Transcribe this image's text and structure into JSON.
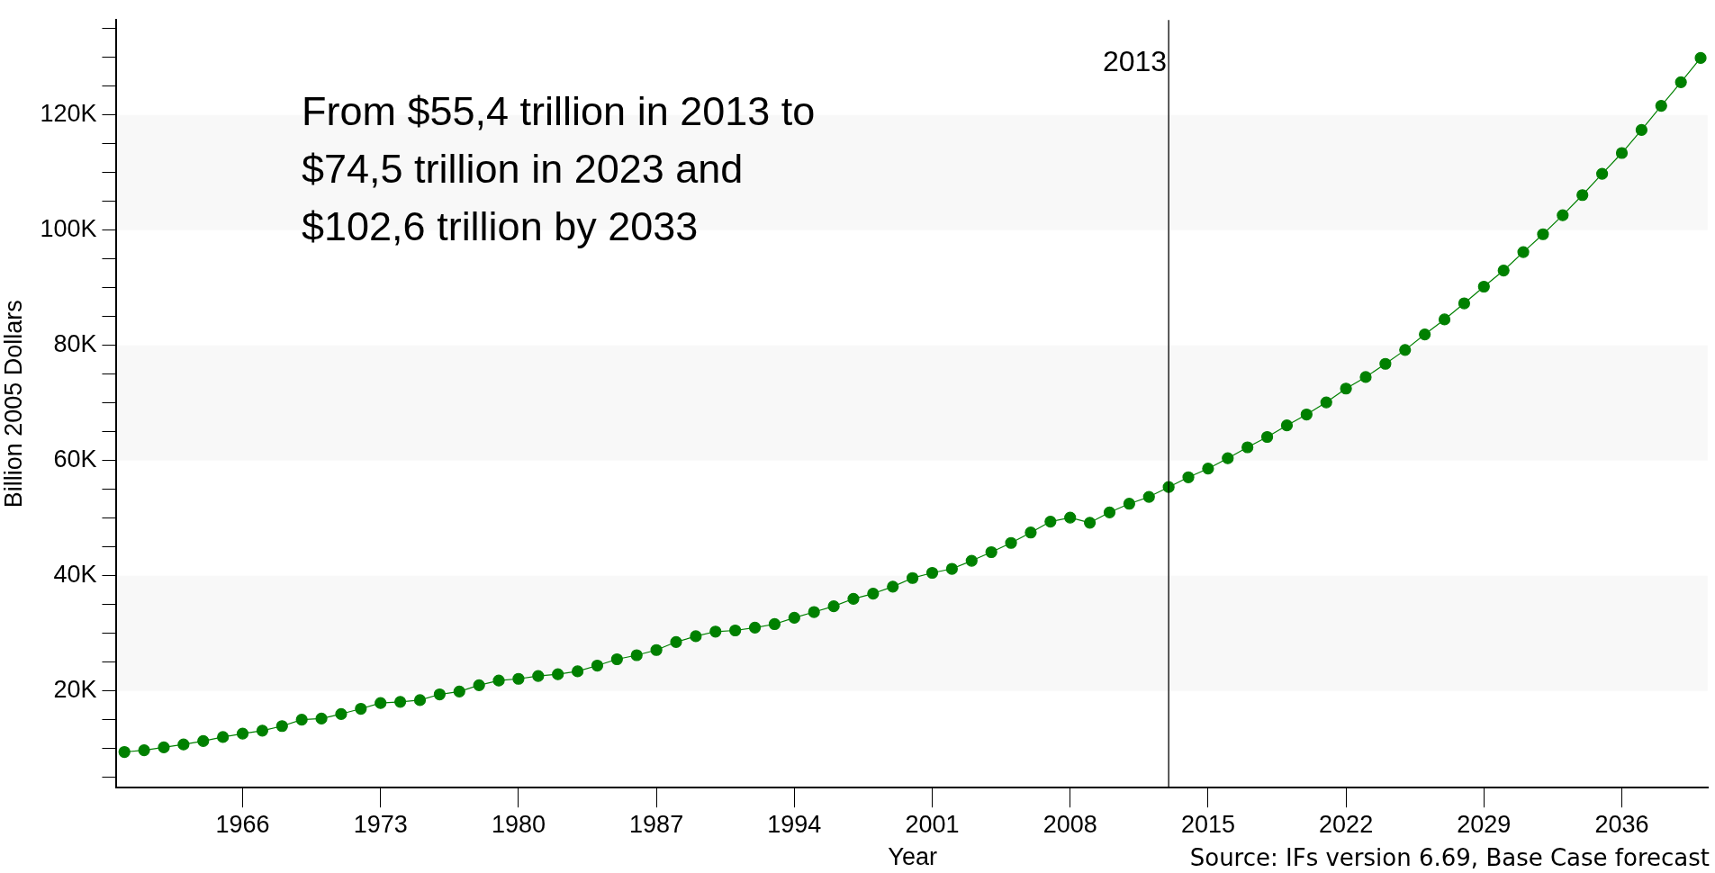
{
  "chart_data": {
    "type": "line",
    "xlabel": "Year",
    "ylabel": "Billion 2005 Dollars",
    "x": [
      1960,
      1961,
      1962,
      1963,
      1964,
      1965,
      1966,
      1967,
      1968,
      1969,
      1970,
      1971,
      1972,
      1973,
      1974,
      1975,
      1976,
      1977,
      1978,
      1979,
      1980,
      1981,
      1982,
      1983,
      1984,
      1985,
      1986,
      1987,
      1988,
      1989,
      1990,
      1991,
      1992,
      1993,
      1994,
      1995,
      1996,
      1997,
      1998,
      1999,
      2000,
      2001,
      2002,
      2003,
      2004,
      2005,
      2006,
      2007,
      2008,
      2009,
      2010,
      2011,
      2012,
      2013,
      2014,
      2015,
      2016,
      2017,
      2018,
      2019,
      2020,
      2021,
      2022,
      2023,
      2024,
      2025,
      2026,
      2027,
      2028,
      2029,
      2030,
      2031,
      2032,
      2033,
      2034,
      2035,
      2036,
      2037,
      2038,
      2039,
      2040
    ],
    "series": [
      {
        "color": "#008000",
        "values": [
          9400,
          9700,
          10200,
          10700,
          11300,
          12000,
          12600,
          13100,
          13900,
          15000,
          15200,
          16000,
          16900,
          17900,
          18100,
          18400,
          19400,
          19900,
          21000,
          21800,
          22100,
          22600,
          22900,
          23400,
          24400,
          25500,
          26200,
          27100,
          28500,
          29500,
          30300,
          30500,
          31000,
          31600,
          32700,
          33700,
          34700,
          36000,
          36900,
          38100,
          39600,
          40500,
          41200,
          42600,
          44100,
          45700,
          47500,
          49400,
          50100,
          49200,
          51000,
          52500,
          53700,
          55400,
          57100,
          58600,
          60400,
          62300,
          64100,
          66100,
          68000,
          70100,
          72500,
          74500,
          76800,
          79200,
          81900,
          84500,
          87300,
          90200,
          93000,
          96200,
          99300,
          102600,
          106100,
          109800,
          113400,
          117400,
          121600,
          125700,
          129900
        ]
      }
    ],
    "xlim": [
      1959.6,
      2040.4
    ],
    "xticks": [
      1966,
      1973,
      1980,
      1987,
      1994,
      2001,
      2008,
      2015,
      2022,
      2029,
      2036
    ],
    "ylim": [
      3200,
      136500
    ],
    "yticks": [
      {
        "value": 5000,
        "label": null
      },
      {
        "value": 10000,
        "label": null
      },
      {
        "value": 15000,
        "label": null
      },
      {
        "value": 20000,
        "label": "20K"
      },
      {
        "value": 25000,
        "label": null
      },
      {
        "value": 30000,
        "label": null
      },
      {
        "value": 35000,
        "label": null
      },
      {
        "value": 40000,
        "label": "40K"
      },
      {
        "value": 45000,
        "label": null
      },
      {
        "value": 50000,
        "label": null
      },
      {
        "value": 55000,
        "label": null
      },
      {
        "value": 60000,
        "label": "60K"
      },
      {
        "value": 65000,
        "label": null
      },
      {
        "value": 70000,
        "label": null
      },
      {
        "value": 75000,
        "label": null
      },
      {
        "value": 80000,
        "label": "80K"
      },
      {
        "value": 85000,
        "label": null
      },
      {
        "value": 90000,
        "label": null
      },
      {
        "value": 95000,
        "label": null
      },
      {
        "value": 100000,
        "label": "100K"
      },
      {
        "value": 105000,
        "label": null
      },
      {
        "value": 110000,
        "label": null
      },
      {
        "value": 115000,
        "label": null
      },
      {
        "value": 120000,
        "label": "120K"
      },
      {
        "value": 125000,
        "label": null
      },
      {
        "value": 130000,
        "label": null
      },
      {
        "value": 135000,
        "label": null
      }
    ],
    "marker": "circle",
    "line_style": "solid",
    "ref_lines": [
      {
        "axis": "x",
        "value": 2013,
        "label": "2013",
        "color": "#000000"
      }
    ],
    "annotations": [
      "From $55,4 trillion in 2013 to\n$74,5 trillion in 2023 and\n$102,6 trillion by 2033",
      "Source: IFs version 6.69, Base Case forecast"
    ]
  }
}
